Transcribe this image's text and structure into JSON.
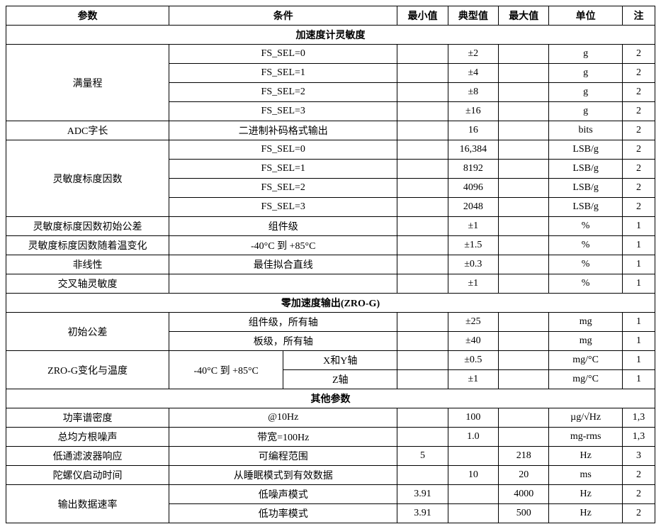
{
  "headers": {
    "param": "参数",
    "cond": "条件",
    "min": "最小值",
    "typ": "典型值",
    "max": "最大值",
    "unit": "单位",
    "note": "注"
  },
  "section1": "加速度计灵敏度",
  "r1": {
    "param": "满量程",
    "a": {
      "cond": "FS_SEL=0",
      "typ": "±2",
      "unit": "g",
      "note": "2"
    },
    "b": {
      "cond": "FS_SEL=1",
      "typ": "±4",
      "unit": "g",
      "note": "2"
    },
    "c": {
      "cond": "FS_SEL=2",
      "typ": "±8",
      "unit": "g",
      "note": "2"
    },
    "d": {
      "cond": "FS_SEL=3",
      "typ": "±16",
      "unit": "g",
      "note": "2"
    }
  },
  "r2": {
    "param": "ADC字长",
    "cond": "二进制补码格式输出",
    "typ": "16",
    "unit": "bits",
    "note": "2"
  },
  "r3": {
    "param": "灵敏度标度因数",
    "a": {
      "cond": "FS_SEL=0",
      "typ": "16,384",
      "unit": "LSB/g",
      "note": "2"
    },
    "b": {
      "cond": "FS_SEL=1",
      "typ": "8192",
      "unit": "LSB/g",
      "note": "2"
    },
    "c": {
      "cond": "FS_SEL=2",
      "typ": "4096",
      "unit": "LSB/g",
      "note": "2"
    },
    "d": {
      "cond": "FS_SEL=3",
      "typ": "2048",
      "unit": "LSB/g",
      "note": "2"
    }
  },
  "r4": {
    "param": "灵敏度标度因数初始公差",
    "cond": "组件级",
    "typ": "±1",
    "unit": "%",
    "note": "1"
  },
  "r5": {
    "param": "灵敏度标度因数随着温变化",
    "cond": "-40°C 到 +85°C",
    "typ": "±1.5",
    "unit": "%",
    "note": "1"
  },
  "r6": {
    "param": "非线性",
    "cond": "最佳拟合直线",
    "typ": "±0.3",
    "unit": "%",
    "note": "1"
  },
  "r7": {
    "param": "交叉轴灵敏度",
    "cond": "",
    "typ": "±1",
    "unit": "%",
    "note": "1"
  },
  "section2": "零加速度输出(ZRO-G)",
  "r8": {
    "param": "初始公差",
    "a": {
      "cond": "组件级，所有轴",
      "typ": "±25",
      "unit": "mg",
      "note": "1"
    },
    "b": {
      "cond": "板级，所有轴",
      "typ": "±40",
      "unit": "mg",
      "note": "1"
    }
  },
  "r9": {
    "param": "ZRO-G变化与温度",
    "cond": "-40°C 到 +85°C",
    "a": {
      "sub": "X和Y轴",
      "typ": "±0.5",
      "unit": "mg/°C",
      "note": "1"
    },
    "b": {
      "sub": "Z轴",
      "typ": "±1",
      "unit": "mg/°C",
      "note": "1"
    }
  },
  "section3": "其他参数",
  "r10": {
    "param": "功率谱密度",
    "cond": "@10Hz",
    "typ": "100",
    "unit": "µg/√Hz",
    "note": "1,3"
  },
  "r11": {
    "param": "总均方根噪声",
    "cond": "带宽=100Hz",
    "typ": "1.0",
    "unit": "mg-rms",
    "note": "1,3"
  },
  "r12": {
    "param": "低通滤波器响应",
    "cond": "可编程范围",
    "min": "5",
    "max": "218",
    "unit": "Hz",
    "note": "3"
  },
  "r13": {
    "param": "陀螺仪启动时间",
    "cond": "从睡眠模式到有效数据",
    "typ": "10",
    "max": "20",
    "unit": "ms",
    "note": "2"
  },
  "r14": {
    "param": "输出数据速率",
    "a": {
      "cond": "低噪声模式",
      "min": "3.91",
      "max": "4000",
      "unit": "Hz",
      "note": "2"
    },
    "b": {
      "cond": "低功率模式",
      "min": "3.91",
      "max": "500",
      "unit": "Hz",
      "note": "2"
    }
  }
}
